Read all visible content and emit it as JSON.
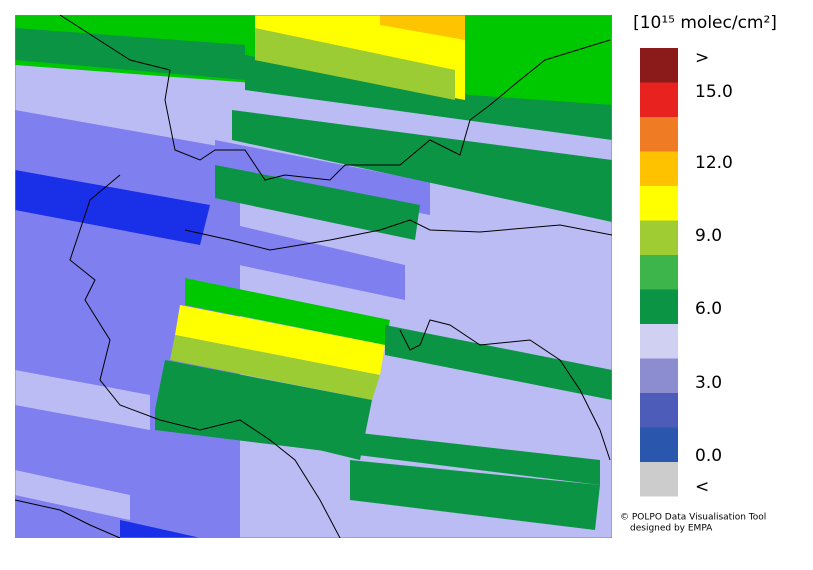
{
  "legend": {
    "title": "[10¹⁵ molec/cm²]",
    "colors": [
      "#8b1a1a",
      "#e8231f",
      "#ef7b24",
      "#ffc200",
      "#ffff00",
      "#a0cc33",
      "#3db54a",
      "#0b9444",
      "#d0d0f2",
      "#8c8cd0",
      "#4d5cb8",
      "#2a56ad",
      "#cccccc"
    ],
    "labels": [
      ">",
      "15.0",
      "12.0",
      "9.0",
      "6.0",
      "3.0",
      "0.0",
      "<"
    ]
  },
  "credit": {
    "line1": "© POLPO Data Visualisation Tool",
    "line2": "designed by EMPA"
  }
}
